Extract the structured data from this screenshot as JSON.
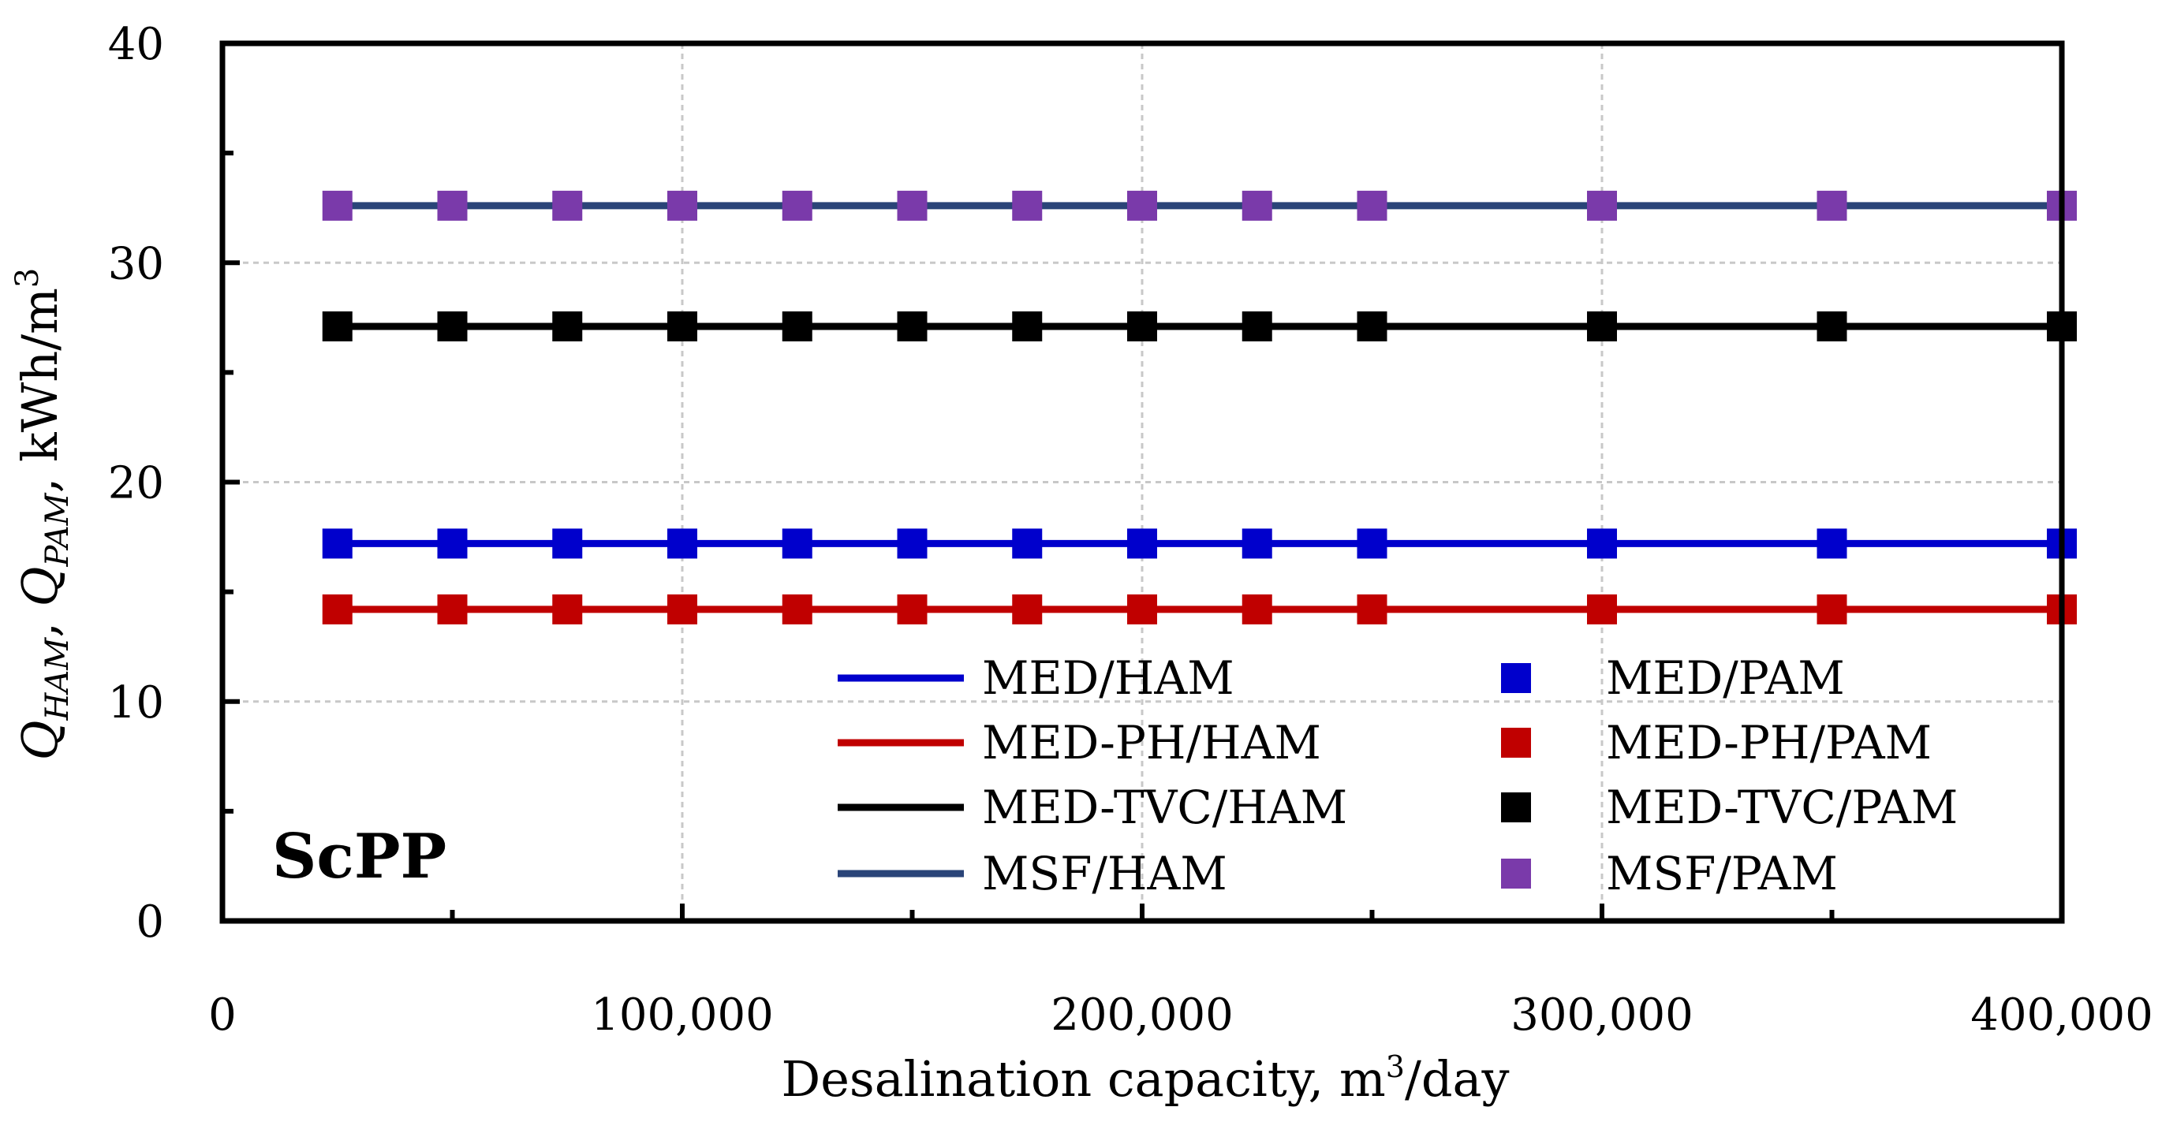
{
  "chart_data": {
    "type": "line",
    "panel_label": "ScPP",
    "xlabel": {
      "main": "Desalination capacity, m",
      "sup": "3",
      "tail": "/day"
    },
    "ylabel": {
      "q1": "Q",
      "q1_sub": "HAM",
      "sep": ", ",
      "q2": "Q",
      "q2_sub": "PAM",
      "units": ", kWh/m",
      "units_sup": "3"
    },
    "xlim": [
      0,
      400000
    ],
    "ylim": [
      0,
      40
    ],
    "xticks": [
      0,
      100000,
      200000,
      300000,
      400000
    ],
    "xtick_labels": [
      "0",
      "100,000",
      "200,000",
      "300,000",
      "400,000"
    ],
    "yticks": [
      0,
      10,
      20,
      30,
      40
    ],
    "ytick_labels": [
      "0",
      "10",
      "20",
      "30",
      "40"
    ],
    "grid": true,
    "x": [
      25000,
      50000,
      75000,
      100000,
      125000,
      150000,
      175000,
      200000,
      225000,
      250000,
      300000,
      350000,
      400000
    ],
    "series": [
      {
        "name": "MED/HAM",
        "kind": "line",
        "color": "#0000cc",
        "values": [
          17.2,
          17.2,
          17.2,
          17.2,
          17.2,
          17.2,
          17.2,
          17.2,
          17.2,
          17.2,
          17.2,
          17.2,
          17.2
        ]
      },
      {
        "name": "MED-PH/HAM",
        "kind": "line",
        "color": "#c00000",
        "values": [
          14.2,
          14.2,
          14.2,
          14.2,
          14.2,
          14.2,
          14.2,
          14.2,
          14.2,
          14.2,
          14.2,
          14.2,
          14.2
        ]
      },
      {
        "name": "MED-TVC/HAM",
        "kind": "line",
        "color": "#000000",
        "values": [
          27.1,
          27.1,
          27.1,
          27.1,
          27.1,
          27.1,
          27.1,
          27.1,
          27.1,
          27.1,
          27.1,
          27.1,
          27.1
        ]
      },
      {
        "name": "MSF/HAM",
        "kind": "line",
        "color": "#2a4478",
        "values": [
          32.6,
          32.6,
          32.6,
          32.6,
          32.6,
          32.6,
          32.6,
          32.6,
          32.6,
          32.6,
          32.6,
          32.6,
          32.6
        ]
      },
      {
        "name": "MED/PAM",
        "kind": "marker",
        "color": "#0000cc",
        "values": [
          17.2,
          17.2,
          17.2,
          17.2,
          17.2,
          17.2,
          17.2,
          17.2,
          17.2,
          17.2,
          17.2,
          17.2,
          17.2
        ]
      },
      {
        "name": "MED-PH/PAM",
        "kind": "marker",
        "color": "#c00000",
        "values": [
          14.2,
          14.2,
          14.2,
          14.2,
          14.2,
          14.2,
          14.2,
          14.2,
          14.2,
          14.2,
          14.2,
          14.2,
          14.2
        ]
      },
      {
        "name": "MED-TVC/PAM",
        "kind": "marker",
        "color": "#000000",
        "values": [
          27.1,
          27.1,
          27.1,
          27.1,
          27.1,
          27.1,
          27.1,
          27.1,
          27.1,
          27.1,
          27.1,
          27.1,
          27.1
        ]
      },
      {
        "name": "MSF/PAM",
        "kind": "marker",
        "color": "#7a3aaa",
        "values": [
          32.6,
          32.6,
          32.6,
          32.6,
          32.6,
          32.6,
          32.6,
          32.6,
          32.6,
          32.6,
          32.6,
          32.6,
          32.6
        ]
      }
    ],
    "legend": {
      "placement": "bottom-center",
      "col1": [
        "MED/HAM",
        "MED-PH/HAM",
        "MED-TVC/HAM",
        "MSF/HAM"
      ],
      "col2": [
        "MED/PAM",
        "MED-PH/PAM",
        "MED-TVC/PAM",
        "MSF/PAM"
      ]
    }
  }
}
